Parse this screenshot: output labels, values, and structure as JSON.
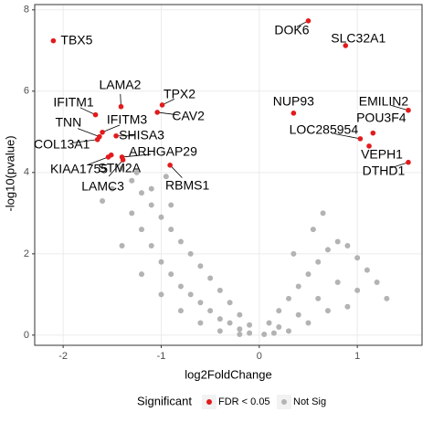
{
  "chart_data": {
    "type": "scatter",
    "x_label": "log2FoldChange",
    "y_label": "-log10(pvalue)",
    "legend_title": "Significant",
    "legend_position": "bottom",
    "grid": true,
    "xlim": [
      -2.29,
      1.66
    ],
    "ylim": [
      -0.25,
      8.13
    ],
    "xticks": [
      -2,
      -1,
      0,
      1
    ],
    "yticks": [
      0,
      2,
      4,
      6,
      8
    ],
    "series": [
      {
        "name": "FDR < 0.05",
        "color": "#e31a1c",
        "x": [
          -2.1,
          0.5,
          0.88,
          -1.41,
          -0.99,
          -1.04,
          -1.67,
          0.35,
          1.52,
          1.16,
          1.03,
          -1.6,
          -1.63,
          -1.46,
          -1.65,
          -1.4,
          -1.54,
          -1.51,
          -1.39,
          1.12,
          1.52,
          -0.91
        ],
        "values": [
          7.24,
          7.73,
          7.12,
          5.62,
          5.66,
          5.48,
          5.42,
          5.46,
          5.53,
          4.97,
          4.83,
          4.99,
          4.88,
          4.9,
          4.81,
          4.38,
          4.38,
          4.43,
          4.31,
          4.65,
          4.25,
          4.18
        ],
        "labels": [
          "TBX5",
          "DOK6",
          "SLC32A1",
          "LAMA2",
          "TPX2",
          "CAV2",
          "IFITM1",
          "NUP93",
          "EMILIN2",
          "POU3F4",
          "LOC285954",
          "IFITM3",
          "TNN",
          "SHISA3",
          "COL13A1",
          "ARHGAP29",
          "KIAA1755",
          "STM2A",
          "LAMC3",
          "VEPH1",
          "DTHD1",
          "RBMS1"
        ]
      },
      {
        "name": "Not Sig",
        "color": "#b3b3b3",
        "x": [
          -1.4,
          -1.3,
          -1.2,
          -1.1,
          -1.0,
          -0.9,
          -0.8,
          -0.7,
          -0.6,
          -0.5,
          -0.4,
          -0.3,
          -0.2,
          -0.1,
          -1.3,
          -1.2,
          -1.1,
          -1.0,
          -0.9,
          -0.8,
          -0.7,
          -0.6,
          -0.5,
          -0.4,
          -0.3,
          -0.2,
          -0.1,
          -1.5,
          -1.6,
          -1.4,
          -1.2,
          -1.0,
          -0.8,
          -0.6,
          -0.4,
          -0.2,
          -1.1,
          -0.9,
          -0.95,
          -1.25,
          0.1,
          0.2,
          0.3,
          0.4,
          0.5,
          0.6,
          0.7,
          0.8,
          0.9,
          1.0,
          0.2,
          0.4,
          0.6,
          0.8,
          1.0,
          1.1,
          0.3,
          0.5,
          0.7,
          0.9,
          1.2,
          0.05,
          0.15,
          0.35,
          0.55,
          0.65,
          1.3
        ],
        "values": [
          4.1,
          3.8,
          3.5,
          3.2,
          2.9,
          2.6,
          2.3,
          2.0,
          1.7,
          1.4,
          1.1,
          0.8,
          0.5,
          0.25,
          3.0,
          2.6,
          2.2,
          1.8,
          1.5,
          1.2,
          1.0,
          0.8,
          0.6,
          0.4,
          0.3,
          0.15,
          0.05,
          3.6,
          3.3,
          2.2,
          1.5,
          1.0,
          0.6,
          0.3,
          0.1,
          0.02,
          3.6,
          3.2,
          3.9,
          4.0,
          0.3,
          0.6,
          0.9,
          1.2,
          1.5,
          1.8,
          2.1,
          2.3,
          2.2,
          1.9,
          0.2,
          0.5,
          0.9,
          1.3,
          1.1,
          1.6,
          0.1,
          0.3,
          0.6,
          0.7,
          1.3,
          0.02,
          0.05,
          2.0,
          2.6,
          3.0,
          0.9
        ]
      }
    ]
  }
}
